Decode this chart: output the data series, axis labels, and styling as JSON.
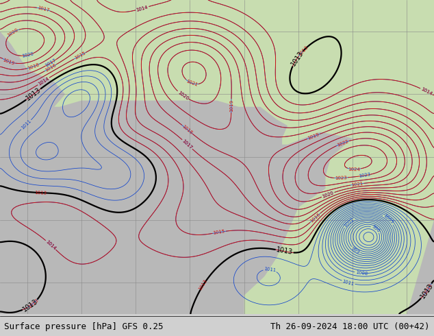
{
  "title_left": "Surface pressure [hPa] GFS 0.25",
  "title_right": "Th 26-09-2024 18:00 UTC (00+42)",
  "land_color": "#c8ddb0",
  "ocean_color": "#b8b8b8",
  "isobar_blue": "#1144cc",
  "isobar_red": "#cc1111",
  "isobar_black": "#000000",
  "footer_bg": "#d0d0d0",
  "footer_fontsize": 9,
  "figsize": [
    6.34,
    4.9
  ],
  "dpi": 100
}
